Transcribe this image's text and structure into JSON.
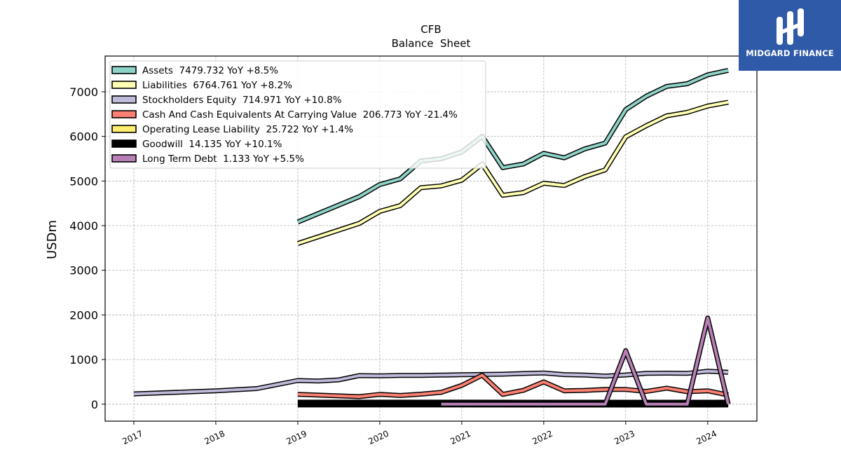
{
  "brand": {
    "name": "MIDGARD FINANCE",
    "color": "#2f5aa8"
  },
  "chart_data": {
    "type": "line",
    "title": "CFB",
    "subtitle": "Balance  Sheet",
    "ylabel": "USDm",
    "xlabel": "",
    "xlim": [
      2016.65,
      2024.6
    ],
    "ylim": [
      -380,
      7800
    ],
    "grid": true,
    "legend_position": "top-left",
    "x_ticks": [
      2017,
      2018,
      2019,
      2020,
      2021,
      2022,
      2023,
      2024
    ],
    "x_tick_labels": [
      "2017",
      "2018",
      "2019",
      "2020",
      "2021",
      "2022",
      "2023",
      "2024"
    ],
    "y_ticks": [
      0,
      1000,
      2000,
      3000,
      4000,
      5000,
      6000,
      7000
    ],
    "y_tick_labels": [
      "0",
      "1000",
      "2000",
      "3000",
      "4000",
      "5000",
      "6000",
      "7000"
    ],
    "series": [
      {
        "name": "Assets",
        "legend": "Assets  7479.732 YoY +8.5%",
        "color": "#8dd3c7",
        "x": [
          2019.0,
          2019.75,
          2020.0,
          2020.25,
          2020.5,
          2020.75,
          2021.0,
          2021.25,
          2021.5,
          2021.75,
          2022.0,
          2022.25,
          2022.5,
          2022.75,
          2023.0,
          2023.25,
          2023.5,
          2023.75,
          2024.0,
          2024.25
        ],
        "y": [
          4080,
          4650,
          4920,
          5050,
          5450,
          5500,
          5650,
          6000,
          5300,
          5380,
          5620,
          5520,
          5720,
          5850,
          6600,
          6900,
          7120,
          7180,
          7380,
          7480
        ]
      },
      {
        "name": "Liabilities",
        "legend": "Liabilities  6764.761 YoY +8.2%",
        "color": "#ffffb3",
        "x": [
          2019.0,
          2019.75,
          2020.0,
          2020.25,
          2020.5,
          2020.75,
          2021.0,
          2021.25,
          2021.5,
          2021.75,
          2022.0,
          2022.25,
          2022.5,
          2022.75,
          2023.0,
          2023.25,
          2023.5,
          2023.75,
          2024.0,
          2024.25
        ],
        "y": [
          3600,
          4050,
          4320,
          4450,
          4850,
          4890,
          5020,
          5380,
          4680,
          4740,
          4950,
          4900,
          5100,
          5250,
          5990,
          6240,
          6460,
          6540,
          6680,
          6765
        ]
      },
      {
        "name": "Stockholders Equity",
        "legend": "Stockholders Equity  714.971 YoY +10.8%",
        "color": "#bebada",
        "x": [
          2017.0,
          2018.0,
          2018.5,
          2019.0,
          2019.25,
          2019.5,
          2019.75,
          2020.0,
          2020.25,
          2020.5,
          2020.75,
          2021.0,
          2021.25,
          2021.5,
          2021.75,
          2022.0,
          2022.25,
          2022.5,
          2022.75,
          2023.0,
          2023.25,
          2023.5,
          2023.75,
          2024.0,
          2024.25
        ],
        "y": [
          230,
          300,
          350,
          530,
          520,
          545,
          640,
          635,
          645,
          645,
          652,
          660,
          665,
          672,
          688,
          700,
          662,
          652,
          630,
          655,
          690,
          695,
          690,
          740,
          715
        ]
      },
      {
        "name": "Cash And Cash Equivalents At Carrying Value",
        "legend": "Cash And Cash Equivalents At Carrying Value  206.773 YoY -21.4%",
        "color": "#fb8072",
        "x": [
          2019.0,
          2019.75,
          2020.0,
          2020.25,
          2020.5,
          2020.75,
          2021.0,
          2021.25,
          2021.5,
          2021.75,
          2022.0,
          2022.25,
          2022.5,
          2022.75,
          2023.0,
          2023.25,
          2023.5,
          2023.75,
          2024.0,
          2024.25
        ],
        "y": [
          220,
          170,
          220,
          195,
          225,
          265,
          420,
          650,
          220,
          310,
          500,
          300,
          310,
          330,
          330,
          285,
          360,
          280,
          300,
          205
        ]
      },
      {
        "name": "Operating Lease Liability",
        "legend": "Operating Lease Liability  25.722 YoY +1.4%",
        "color": "#ffed6f",
        "x": [
          2019.0,
          2020.0,
          2021.0,
          2022.0,
          2023.0,
          2024.0,
          2024.25
        ],
        "y": [
          26,
          26,
          26,
          25,
          25,
          25,
          25.7
        ]
      },
      {
        "name": "Goodwill",
        "legend": "Goodwill  14.135 YoY +10.1%",
        "color": "#000000",
        "x": [
          2019.0,
          2020.0,
          2021.0,
          2022.0,
          2023.0,
          2024.0,
          2024.25
        ],
        "y": [
          14,
          14,
          14,
          13,
          13,
          13,
          14.1
        ]
      },
      {
        "name": "Long Term Debt",
        "legend": "Long Term Debt  1.133 YoY +5.5%",
        "color": "#b77fb5",
        "x": [
          2020.75,
          2021.0,
          2021.25,
          2021.5,
          2021.75,
          2022.0,
          2022.25,
          2022.5,
          2022.75,
          2023.0,
          2023.25,
          2023.5,
          2023.75,
          2024.0,
          2024.25
        ],
        "y": [
          0,
          0,
          0,
          0,
          0,
          0,
          0,
          0,
          0,
          1200,
          0,
          0,
          0,
          1930,
          1.1
        ]
      }
    ]
  }
}
